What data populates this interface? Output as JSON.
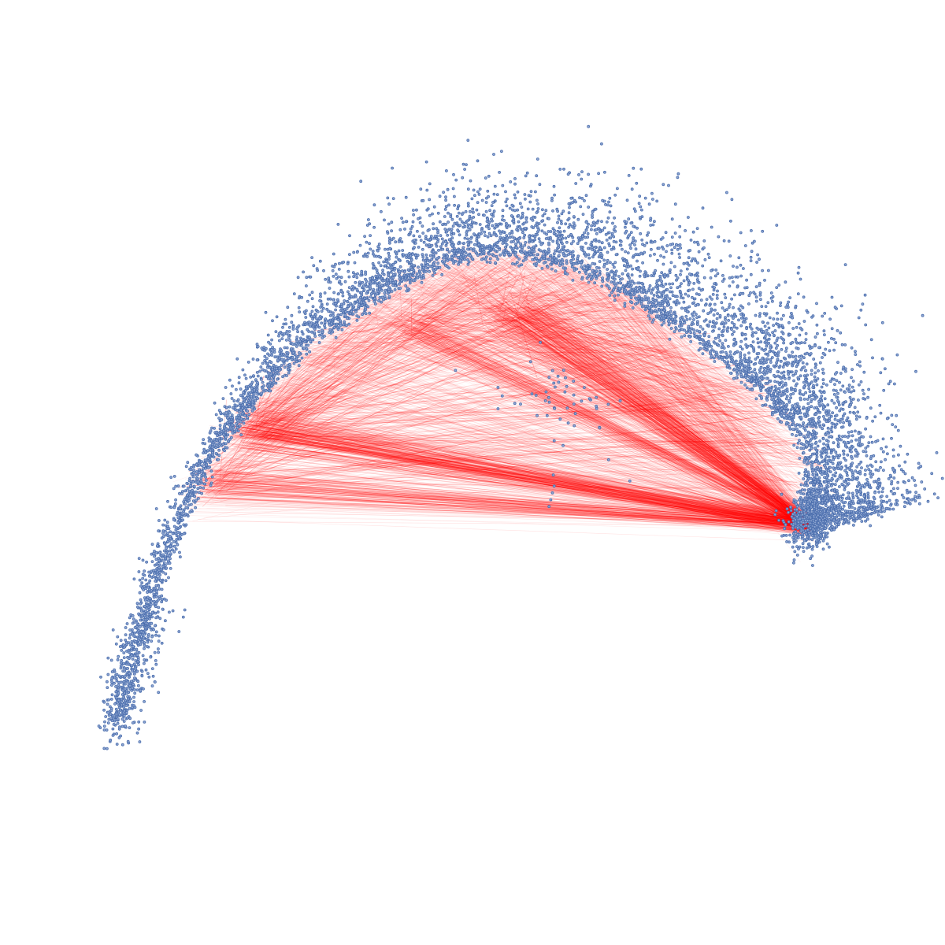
{
  "chart_data": {
    "type": "scatter",
    "description_of_layers": [
      "edges",
      "nodes"
    ],
    "colors": {
      "node_stroke": "#4c6fae",
      "node_fill": "#8fa6d1",
      "edge": "#ff0000",
      "background": "#ffffff"
    },
    "xlim": [
      0,
      1
    ],
    "ylim": [
      0,
      1
    ],
    "nodes": {
      "arc_control": [
        [
          0.08,
          0.19
        ],
        [
          0.22,
          0.55
        ],
        [
          0.52,
          0.76
        ],
        [
          0.84,
          0.6
        ],
        [
          0.9,
          0.43
        ]
      ],
      "arc_spread": 0.045,
      "arc_count": 5200,
      "left_tail_count": 260,
      "hub_cluster": {
        "center": [
          0.895,
          0.445
        ],
        "count": 520,
        "spread": 0.012
      },
      "inner_cluster": {
        "center": [
          0.605,
          0.585
        ],
        "count": 45,
        "spread": 0.025
      },
      "isolated_points": [
        [
          0.59,
          0.46
        ],
        [
          0.592,
          0.468
        ],
        [
          0.594,
          0.476
        ],
        [
          0.596,
          0.484
        ],
        [
          0.685,
          0.49
        ],
        [
          0.66,
          0.515
        ],
        [
          0.595,
          0.497
        ],
        [
          0.53,
          0.6
        ],
        [
          0.535,
          0.59
        ],
        [
          0.53,
          0.575
        ],
        [
          0.48,
          0.62
        ],
        [
          0.13,
          0.33
        ],
        [
          0.16,
          0.33
        ],
        [
          0.355,
          0.73
        ],
        [
          0.36,
          0.735
        ]
      ]
    },
    "edges": {
      "hub": [
        0.895,
        0.438
      ],
      "left_hubs": [
        [
          0.19,
          0.485
        ],
        [
          0.23,
          0.545
        ],
        [
          0.25,
          0.555
        ]
      ],
      "upper_hubs": [
        [
          0.53,
          0.685
        ],
        [
          0.43,
          0.672
        ],
        [
          0.56,
          0.693
        ]
      ],
      "dense_count": 900,
      "faint_count": 1100
    }
  }
}
